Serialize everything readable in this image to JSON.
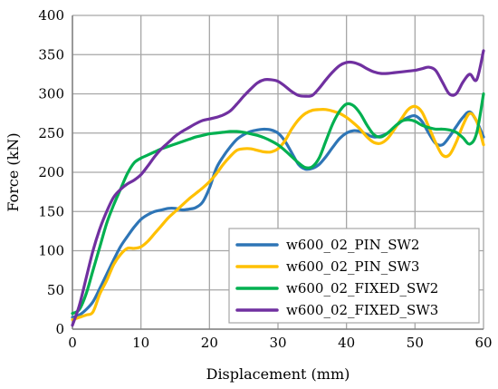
{
  "chart_data": {
    "type": "line",
    "title": "",
    "xlabel": "Displacement (mm)",
    "ylabel": "Force (kN)",
    "xlim": [
      0,
      60
    ],
    "ylim": [
      0,
      400
    ],
    "xticks": [
      0,
      10,
      20,
      30,
      40,
      50,
      60
    ],
    "yticks": [
      0,
      50,
      100,
      150,
      200,
      250,
      300,
      350,
      400
    ],
    "grid": true,
    "legend_position": "bottom-right",
    "series": [
      {
        "name": "w600_02_PIN_SW2",
        "color": "#2e75b6",
        "x": [
          0,
          1,
          2,
          3,
          4,
          5,
          6,
          7,
          8,
          9,
          10,
          11,
          12,
          13,
          14,
          15,
          16,
          17,
          18,
          19,
          20,
          21,
          22,
          23,
          24,
          25,
          26,
          27,
          28,
          29,
          30,
          31,
          32,
          33,
          34,
          35,
          36,
          37,
          38,
          39,
          40,
          41,
          42,
          43,
          44,
          45,
          46,
          47,
          48,
          49,
          50,
          51,
          52,
          53,
          54,
          55,
          56,
          57,
          58,
          59,
          60
        ],
        "y": [
          15,
          18,
          25,
          35,
          52,
          70,
          88,
          105,
          118,
          130,
          140,
          146,
          150,
          152,
          154,
          154,
          152,
          153,
          155,
          162,
          180,
          205,
          220,
          232,
          242,
          248,
          252,
          254,
          255,
          254,
          250,
          240,
          225,
          210,
          204,
          205,
          210,
          220,
          232,
          243,
          250,
          253,
          252,
          248,
          245,
          246,
          250,
          257,
          265,
          270,
          272,
          265,
          250,
          237,
          235,
          245,
          258,
          270,
          277,
          265,
          245
        ]
      },
      {
        "name": "w600_02_PIN_SW3",
        "color": "#ffc000",
        "x": [
          0,
          1,
          2,
          3,
          4,
          5,
          6,
          7,
          8,
          9,
          10,
          11,
          12,
          13,
          14,
          15,
          16,
          17,
          18,
          19,
          20,
          21,
          22,
          23,
          24,
          25,
          26,
          27,
          28,
          29,
          30,
          31,
          32,
          33,
          34,
          35,
          36,
          37,
          38,
          39,
          40,
          41,
          42,
          43,
          44,
          45,
          46,
          47,
          48,
          49,
          50,
          51,
          52,
          53,
          54,
          55,
          56,
          57,
          58,
          59,
          60
        ],
        "y": [
          12,
          15,
          18,
          22,
          45,
          62,
          82,
          95,
          103,
          103,
          105,
          112,
          122,
          132,
          142,
          150,
          158,
          166,
          173,
          180,
          188,
          198,
          210,
          220,
          228,
          230,
          230,
          228,
          226,
          226,
          230,
          240,
          255,
          267,
          275,
          279,
          280,
          280,
          278,
          275,
          270,
          263,
          255,
          245,
          238,
          237,
          243,
          255,
          268,
          280,
          284,
          277,
          258,
          238,
          222,
          222,
          238,
          260,
          275,
          265,
          235
        ]
      },
      {
        "name": "w600_02_FIXED_SW2",
        "color": "#00b050",
        "x": [
          0,
          1,
          2,
          3,
          4,
          5,
          6,
          7,
          8,
          9,
          10,
          11,
          12,
          13,
          14,
          15,
          16,
          17,
          18,
          19,
          20,
          21,
          22,
          23,
          24,
          25,
          26,
          27,
          28,
          29,
          30,
          31,
          32,
          33,
          34,
          35,
          36,
          37,
          38,
          39,
          40,
          41,
          42,
          43,
          44,
          45,
          46,
          47,
          48,
          49,
          50,
          51,
          52,
          53,
          54,
          55,
          56,
          57,
          58,
          59,
          60
        ],
        "y": [
          20,
          25,
          45,
          75,
          105,
          135,
          158,
          178,
          198,
          212,
          218,
          222,
          226,
          230,
          233,
          236,
          239,
          242,
          245,
          247,
          249,
          250,
          251,
          252,
          252,
          251,
          249,
          247,
          244,
          240,
          235,
          228,
          220,
          212,
          206,
          207,
          218,
          240,
          262,
          278,
          287,
          285,
          275,
          260,
          248,
          245,
          250,
          258,
          265,
          267,
          265,
          260,
          257,
          255,
          255,
          254,
          251,
          244,
          236,
          250,
          300
        ]
      },
      {
        "name": "w600_02_FIXED_SW3",
        "color": "#7030a0",
        "x": [
          0,
          1,
          2,
          3,
          4,
          5,
          6,
          7,
          8,
          9,
          10,
          11,
          12,
          13,
          14,
          15,
          16,
          17,
          18,
          19,
          20,
          21,
          22,
          23,
          24,
          25,
          26,
          27,
          28,
          29,
          30,
          31,
          32,
          33,
          34,
          35,
          36,
          37,
          38,
          39,
          40,
          41,
          42,
          43,
          44,
          45,
          46,
          47,
          48,
          49,
          50,
          51,
          52,
          53,
          54,
          55,
          56,
          57,
          58,
          59,
          60
        ],
        "y": [
          5,
          30,
          65,
          100,
          128,
          150,
          168,
          178,
          185,
          190,
          197,
          208,
          220,
          230,
          238,
          246,
          252,
          257,
          262,
          266,
          268,
          270,
          273,
          278,
          287,
          297,
          306,
          314,
          318,
          318,
          316,
          310,
          303,
          298,
          297,
          298,
          307,
          318,
          328,
          336,
          340,
          340,
          337,
          332,
          328,
          326,
          326,
          327,
          328,
          329,
          330,
          332,
          334,
          330,
          315,
          300,
          300,
          315,
          325,
          318,
          355
        ]
      }
    ]
  }
}
